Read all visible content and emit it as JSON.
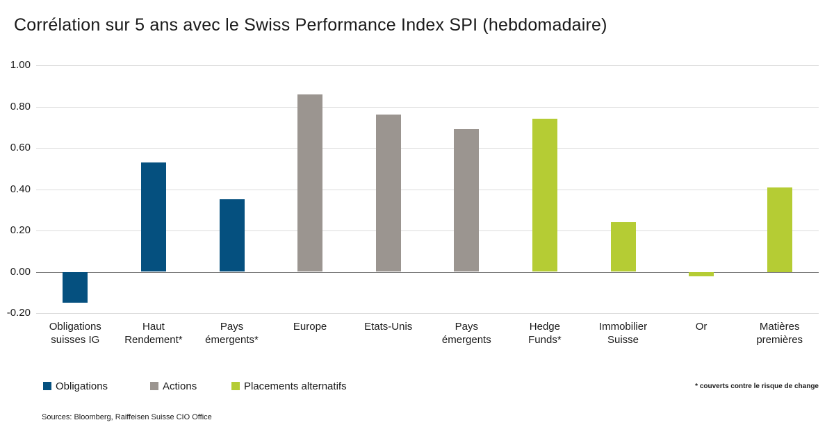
{
  "title": "Corrélation sur 5 ans avec le Swiss Performance Index SPI (hebdomadaire)",
  "chart_data": {
    "type": "bar",
    "title": "Corrélation sur 5 ans avec le Swiss Performance Index SPI (hebdomadaire)",
    "categories": [
      "Obligations\nsuisses IG",
      "Haut\nRendement*",
      "Pays\némergents*",
      "Europe",
      "Etats-Unis",
      "Pays\némergents",
      "Hedge\nFunds*",
      "Immobilier\nSuisse",
      "Or",
      "Matières\npremières"
    ],
    "values": [
      -0.15,
      0.53,
      0.35,
      0.86,
      0.76,
      0.69,
      0.74,
      0.24,
      -0.02,
      0.41
    ],
    "groups": [
      "obligations",
      "obligations",
      "obligations",
      "actions",
      "actions",
      "actions",
      "alternatifs",
      "alternatifs",
      "alternatifs",
      "alternatifs"
    ],
    "yticks": [
      "1.00",
      "0.80",
      "0.60",
      "0.40",
      "0.20",
      "0.00",
      "-0.20"
    ],
    "ylim": [
      -0.2,
      1.0
    ],
    "grid": true,
    "legend_position": "bottom",
    "xlabel": "",
    "ylabel": ""
  },
  "colors": {
    "obligations": "#05507f",
    "actions": "#9b9590",
    "alternatifs": "#b5cc34",
    "gridline": "#dcdcdc",
    "zero_line": "#7f7f7f",
    "text": "#1a1a1a"
  },
  "legend": {
    "items": [
      {
        "label": "Obligations",
        "group": "obligations"
      },
      {
        "label": "Actions",
        "group": "actions"
      },
      {
        "label": "Placements alternatifs",
        "group": "alternatifs"
      }
    ]
  },
  "footnote": "* couverts contre le risque de change",
  "sources": "Sources: Bloomberg, Raiffeisen Suisse CIO Office"
}
